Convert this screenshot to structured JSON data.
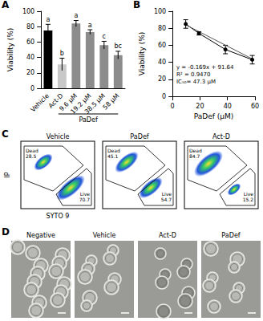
{
  "chart_data": [
    {
      "panel": "A",
      "type": "bar",
      "categories": [
        "Vehicle",
        "Act-D",
        "9.6 µM",
        "19.2 µM",
        "38.5 µM",
        "58 µM"
      ],
      "values": [
        75,
        31,
        84,
        73,
        56,
        43
      ],
      "errors": [
        8,
        8,
        4,
        3,
        5,
        5
      ],
      "letters": [
        "a",
        "b",
        "a",
        "a",
        "c",
        "bc"
      ],
      "colors": [
        "#000000",
        "#c8c8c8",
        "#8c8c8c",
        "#8c8c8c",
        "#8c8c8c",
        "#8c8c8c"
      ],
      "y_label": "Viability (%)",
      "ylim": [
        0,
        100
      ],
      "yticks": [
        0,
        20,
        40,
        60,
        80,
        100
      ],
      "grid": false,
      "group": {
        "label": "PaDef",
        "from": "9.6 µM",
        "to": "58 µM"
      }
    },
    {
      "panel": "B",
      "type": "line",
      "x_label": "PaDef (µM)",
      "y_label": "Viability (%)",
      "xlim": [
        0,
        60
      ],
      "xticks": [
        0,
        20,
        40,
        60
      ],
      "ylim": [
        0,
        100
      ],
      "yticks": [
        0,
        20,
        40,
        60,
        80,
        100
      ],
      "grid": false,
      "series": [
        {
          "x": [
            9.6,
            19.2,
            38.5,
            58
          ],
          "values": [
            85,
            74,
            55,
            43
          ],
          "errors": [
            5,
            2,
            5,
            5
          ],
          "marker": "circle",
          "color": "#000000"
        },
        {
          "x": [
            9.6,
            58
          ],
          "values": [
            84,
            44
          ],
          "marker": "none",
          "color": "#555555"
        }
      ],
      "annotations": [
        "y = -0.169x + 91.64",
        "R² = 0.9470",
        "IC₅₀= 47.3 µM"
      ]
    }
  ],
  "panels": {
    "C": {
      "label": "C",
      "y_label": "IP",
      "x_label": "SYTO 9",
      "plots": [
        {
          "title": "Vehicle",
          "gates": [
            {
              "name": "Dead",
              "value": 28.5
            },
            {
              "name": "Live",
              "value": 70.7
            }
          ]
        },
        {
          "title": "PaDef",
          "gates": [
            {
              "name": "Dead",
              "value": 45.1
            },
            {
              "name": "Live",
              "value": 54.7
            }
          ]
        },
        {
          "title": "Act-D",
          "gates": [
            {
              "name": "Dead",
              "value": 84.7
            },
            {
              "name": "Live",
              "value": 15.2
            }
          ]
        }
      ]
    },
    "D": {
      "label": "D",
      "images": [
        "Negative",
        "Vehicle",
        "Act-D",
        "PaDef"
      ]
    }
  }
}
